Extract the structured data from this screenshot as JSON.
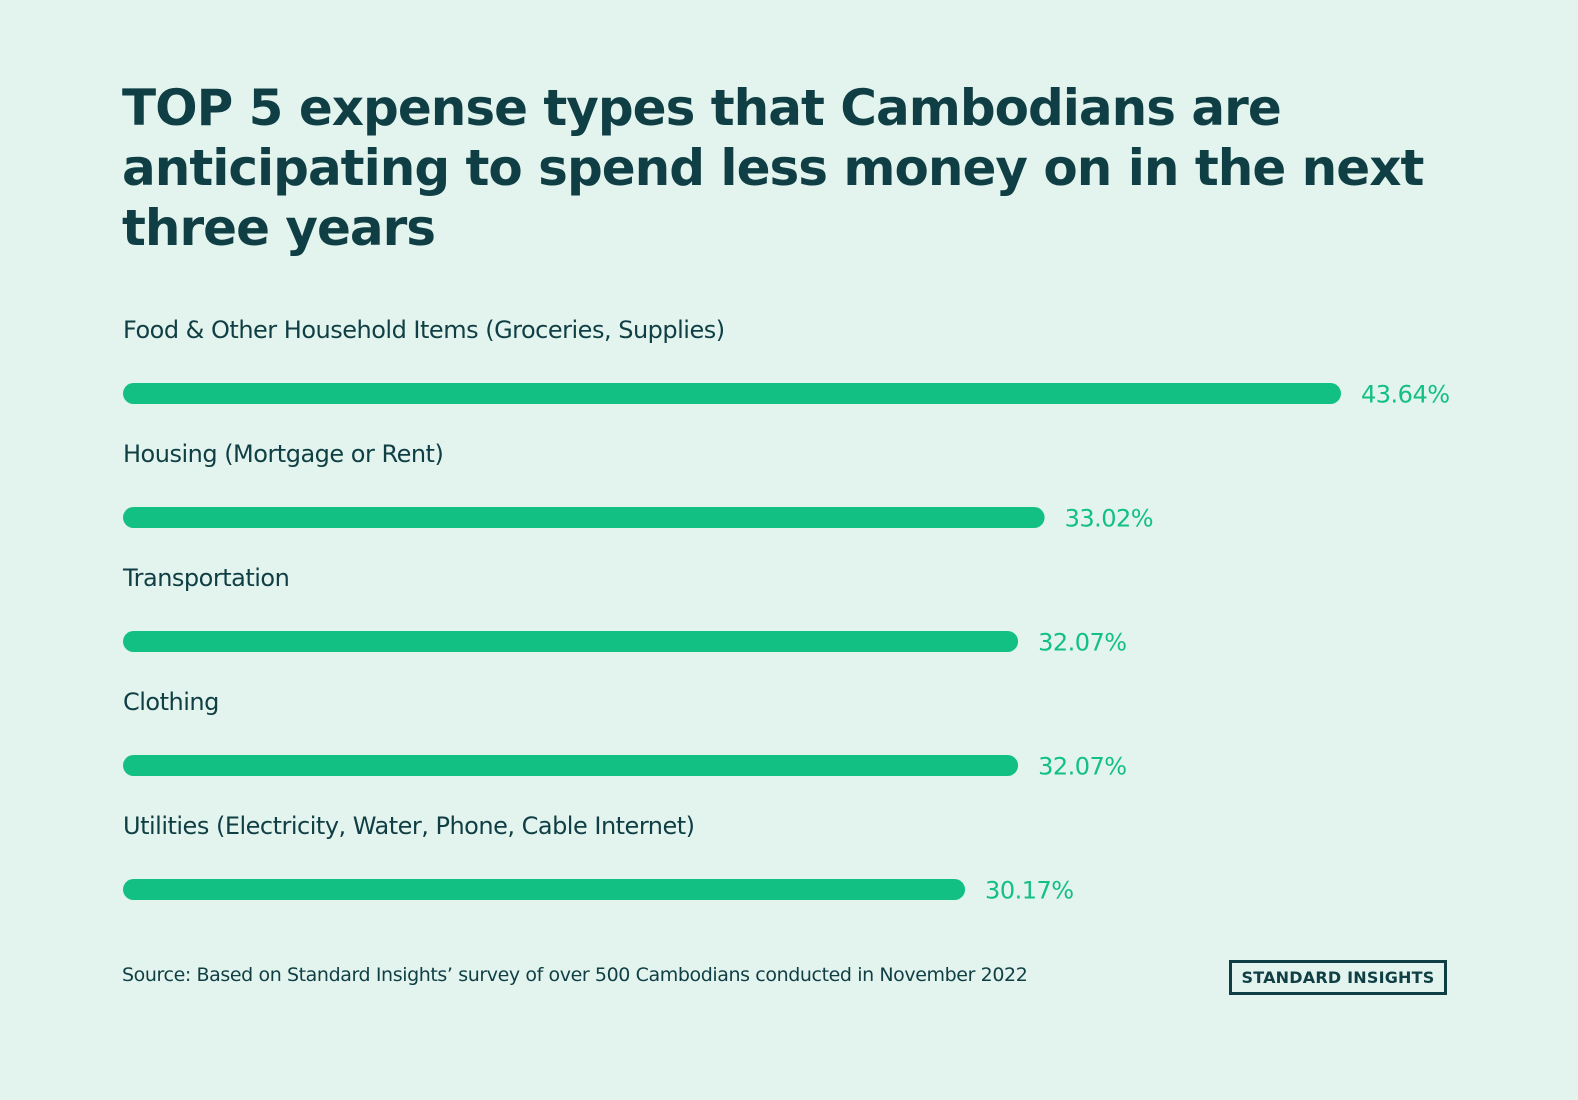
{
  "title": "TOP 5 expense types that Cambodians are anticipating to spend less money on in the next three years",
  "source": "Source: Based on Standard Insights’ survey of over 500 Cambodians conducted in November 2022",
  "brand": "STANDARD INSIGHTS",
  "colors": {
    "background": "#e3f3ed",
    "text": "#0f3f44",
    "bar": "#12c084"
  },
  "chart_data": {
    "type": "bar",
    "orientation": "horizontal",
    "categories": [
      "Food & Other Household Items (Groceries, Supplies)",
      "Housing (Mortgage or Rent)",
      "Transportation",
      "Clothing",
      "Utilities (Electricity, Water, Phone, Cable Internet)"
    ],
    "values": [
      43.64,
      33.02,
      32.07,
      32.07,
      30.17
    ],
    "value_labels": [
      "43.64%",
      "33.02%",
      "32.07%",
      "32.07%",
      "30.17%"
    ],
    "unit": "%",
    "grid": false,
    "legend": "none"
  }
}
